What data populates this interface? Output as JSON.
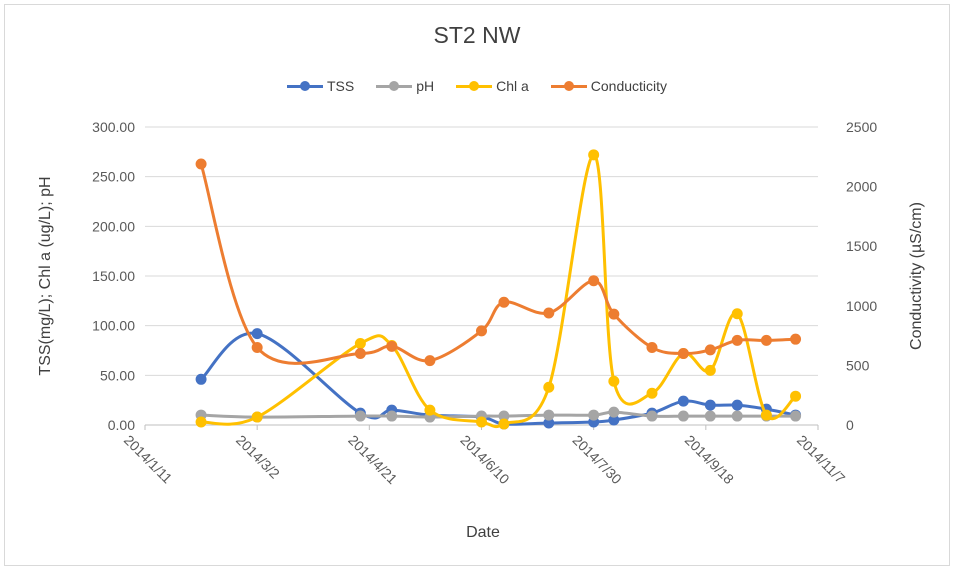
{
  "chart_data": {
    "type": "line",
    "title": "ST2 NW",
    "xlabel": "Date",
    "ylabel_left": "TSS(mg/L); Chl a (ug/L); pH",
    "ylabel_right": "Conductivity  (µS/cm)",
    "x_ticks": [
      "2014/1/11",
      "2014/3/2",
      "2014/4/21",
      "2014/6/10",
      "2014/7/30",
      "2014/9/18",
      "2014/11/7"
    ],
    "x_range": [
      "2014/1/11",
      "2014/11/7"
    ],
    "y_left_range": [
      0,
      300
    ],
    "y_left_ticks": [
      "0.00",
      "50.00",
      "100.00",
      "150.00",
      "200.00",
      "250.00",
      "300.00"
    ],
    "y_right_range": [
      0,
      2500
    ],
    "y_right_ticks": [
      "0",
      "500",
      "1000",
      "1500",
      "2000",
      "2500"
    ],
    "grid": "horizontal",
    "legend": "top",
    "series": [
      {
        "name": "TSS",
        "axis": "left",
        "color": "#4472C4",
        "x": [
          "2014/2/5",
          "2014/3/2",
          "2014/4/17",
          "2014/5/1",
          "2014/5/18",
          "2014/6/10",
          "2014/6/20",
          "2014/7/10",
          "2014/7/30",
          "2014/8/8",
          "2014/8/25",
          "2014/9/8",
          "2014/9/20",
          "2014/10/2",
          "2014/10/15",
          "2014/10/28"
        ],
        "y": [
          46,
          92,
          12,
          15,
          10,
          8,
          1,
          2,
          3,
          5,
          12,
          24,
          20,
          20,
          16,
          10
        ]
      },
      {
        "name": "pH",
        "axis": "left",
        "color": "#A5A5A5",
        "x": [
          "2014/2/5",
          "2014/3/2",
          "2014/4/17",
          "2014/5/1",
          "2014/5/18",
          "2014/6/10",
          "2014/6/20",
          "2014/7/10",
          "2014/7/30",
          "2014/8/8",
          "2014/8/25",
          "2014/9/8",
          "2014/9/20",
          "2014/10/2",
          "2014/10/15",
          "2014/10/28"
        ],
        "y": [
          10,
          8,
          9,
          9,
          8,
          9,
          9,
          10,
          10,
          13,
          9,
          9,
          9,
          9,
          9,
          9
        ]
      },
      {
        "name": "Chl a",
        "axis": "left",
        "color": "#FFC000",
        "x": [
          "2014/2/5",
          "2014/3/2",
          "2014/4/17",
          "2014/5/1",
          "2014/5/18",
          "2014/6/10",
          "2014/6/20",
          "2014/7/10",
          "2014/7/30",
          "2014/8/8",
          "2014/8/25",
          "2014/9/8",
          "2014/9/20",
          "2014/10/2",
          "2014/10/15",
          "2014/10/28"
        ],
        "y": [
          3,
          8,
          82,
          80,
          15,
          3,
          1,
          38,
          272,
          44,
          32,
          72,
          55,
          112,
          10,
          29
        ]
      },
      {
        "name": "Conducticity",
        "axis": "right",
        "color": "#ED7D31",
        "x": [
          "2014/2/5",
          "2014/3/2",
          "2014/4/17",
          "2014/5/1",
          "2014/5/18",
          "2014/6/10",
          "2014/6/20",
          "2014/7/10",
          "2014/7/30",
          "2014/8/8",
          "2014/8/25",
          "2014/9/8",
          "2014/9/20",
          "2014/10/2",
          "2014/10/15",
          "2014/10/28"
        ],
        "y": [
          2190,
          650,
          600,
          660,
          540,
          790,
          1030,
          940,
          1210,
          930,
          650,
          600,
          630,
          710,
          710,
          720
        ]
      }
    ]
  }
}
